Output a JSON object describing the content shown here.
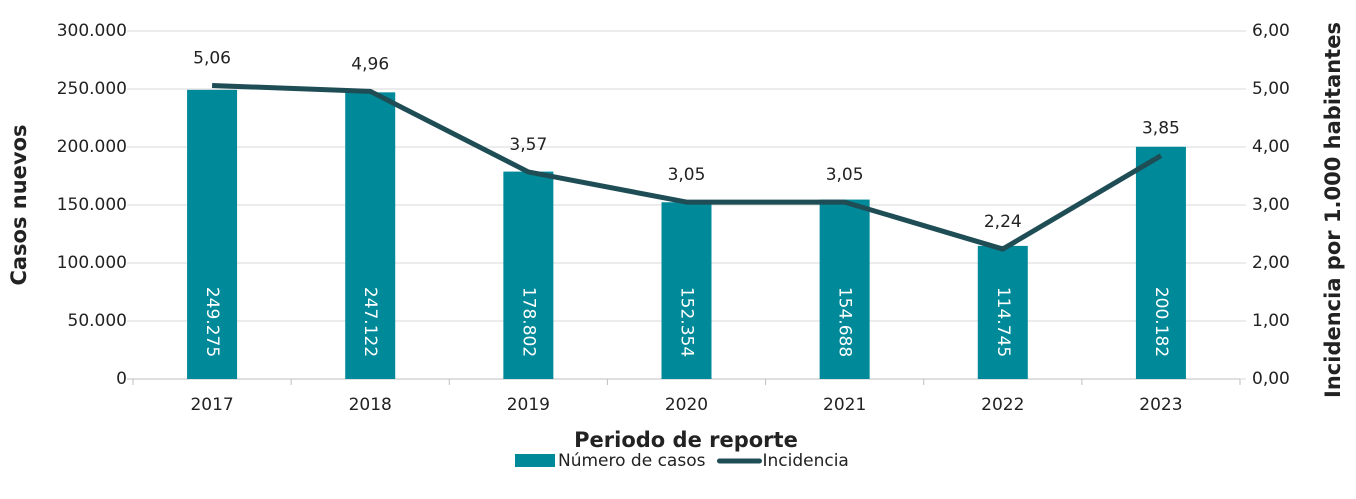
{
  "chart_data": {
    "type": "bar",
    "xlabel": "Periodo de reporte",
    "ylabel": "Casos nuevos",
    "y2label": "Incidencia por 1.000 habitantes",
    "categories": [
      "2017",
      "2018",
      "2019",
      "2020",
      "2021",
      "2022",
      "2023"
    ],
    "series": [
      {
        "name": "Número de casos",
        "type": "bar",
        "color": "#008999",
        "values": [
          249275,
          247122,
          178802,
          152354,
          154688,
          114745,
          200182
        ],
        "value_labels": [
          "249.275",
          "247.122",
          "178.802",
          "152.354",
          "154.688",
          "114.745",
          "200.182"
        ]
      },
      {
        "name": "Incidencia",
        "type": "line",
        "axis": "y2",
        "color": "#1f4d55",
        "values": [
          5.06,
          4.96,
          3.57,
          3.05,
          3.05,
          2.24,
          3.85
        ],
        "value_labels": [
          "5,06",
          "4,96",
          "3,57",
          "3,05",
          "3,05",
          "2,24",
          "3,85"
        ]
      }
    ],
    "ylim": [
      0,
      300000
    ],
    "yticks": [
      0,
      {
        "value": 50000,
        "label": "50.000"
      },
      {
        "value": 100000,
        "label": "100.000"
      },
      {
        "value": 150000,
        "label": "150.000"
      },
      {
        "value": 200000,
        "label": "200.000"
      },
      {
        "value": 250000,
        "label": "250.000"
      },
      {
        "value": 300000,
        "label": "300.000"
      }
    ],
    "y2lim": [
      0,
      6
    ],
    "y2ticks": [
      {
        "value": 0,
        "label": "0,00"
      },
      {
        "value": 1,
        "label": "1,00"
      },
      {
        "value": 2,
        "label": "2,00"
      },
      {
        "value": 3,
        "label": "3,00"
      },
      {
        "value": 4,
        "label": "4,00"
      },
      {
        "value": 5,
        "label": "5,00"
      },
      {
        "value": 6,
        "label": "6,00"
      }
    ],
    "grid": true,
    "legend": "bottom"
  }
}
